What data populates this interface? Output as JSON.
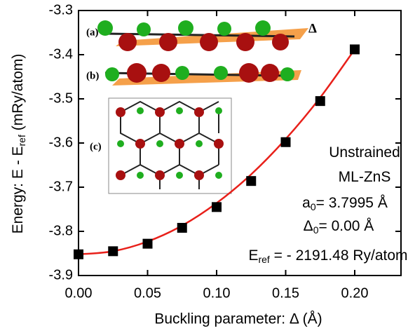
{
  "chart_data": {
    "type": "scatter",
    "xlabel": "Buckling parameter: Δ (Å)",
    "ylabel": {
      "text": "Energy: E - E",
      "sub": "ref",
      "rest": " (mRy/atom)"
    },
    "xlim": [
      0,
      0.2335
    ],
    "ylim": [
      -3.9,
      -3.3
    ],
    "xticks": [
      {
        "value": 0,
        "label": "0.00"
      },
      {
        "value": 0.05,
        "label": "0.05"
      },
      {
        "value": 0.1,
        "label": "0.10"
      },
      {
        "value": 0.15,
        "label": "0.15"
      },
      {
        "value": 0.2,
        "label": "0.20"
      }
    ],
    "yticks": [
      -3.9,
      -3.8,
      -3.7,
      -3.6,
      -3.5,
      -3.4,
      -3.3
    ],
    "series": [
      {
        "type": "scatter",
        "color": "#000000",
        "x": [
          0,
          0.025,
          0.05,
          0.075,
          0.1,
          0.125,
          0.15,
          0.175,
          0.2
        ],
        "values": [
          -3.852,
          -3.845,
          -3.828,
          -3.792,
          -3.745,
          -3.686,
          -3.598,
          -3.505,
          -3.388
        ]
      },
      {
        "type": "line",
        "color": "#e8201a",
        "x": [
          0,
          0.025,
          0.05,
          0.075,
          0.1,
          0.125,
          0.15,
          0.175,
          0.2
        ],
        "values": [
          -3.852,
          -3.845,
          -3.823,
          -3.787,
          -3.736,
          -3.671,
          -3.591,
          -3.497,
          -3.388
        ]
      }
    ],
    "annotations": [
      {
        "text": "Unstrained"
      },
      {
        "text": "ML-ZnS"
      },
      {
        "text": "a",
        "sub": "0",
        "rest": "= 3.7995 Å"
      },
      {
        "text": "Δ",
        "sub": "0",
        "rest": "= 0.00 Å"
      },
      {
        "text": "E",
        "sub": "ref",
        "rest": " = - 2191.48 Ry/atom"
      }
    ],
    "inset_labels": [
      "(a)",
      "(b)",
      "(c)",
      "Δ"
    ]
  }
}
